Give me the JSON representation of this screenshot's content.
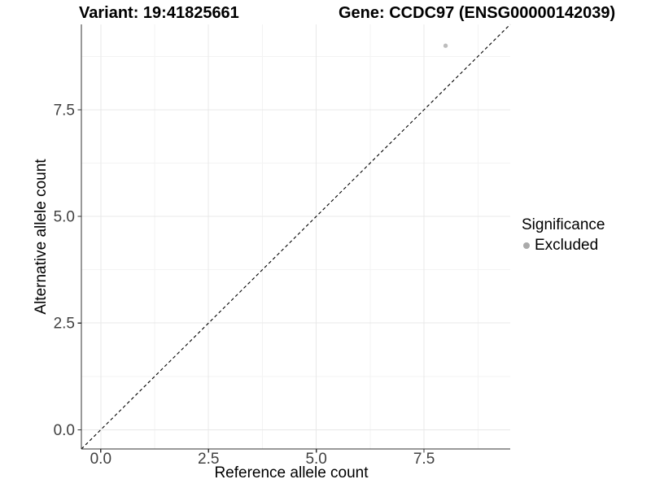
{
  "header": {
    "variant_title": "Variant: 19:41825661",
    "gene_title": "Gene: CCDC97 (ENSG00000142039)"
  },
  "legend": {
    "title": "Significance",
    "items": [
      {
        "label": "Excluded",
        "color": "#aaaaaa",
        "marker": "circle-icon"
      }
    ]
  },
  "chart_data": {
    "type": "scatter",
    "title": "Variant: 19:41825661    Gene: CCDC97 (ENSG00000142039)",
    "xlabel": "Reference allele count",
    "ylabel": "Alternative allele count",
    "xlim": [
      -0.45,
      9.5
    ],
    "ylim": [
      -0.45,
      9.5
    ],
    "x_ticks": [
      0,
      2.5,
      5,
      7.5
    ],
    "x_tick_labels": [
      "0.0",
      "2.5",
      "5.0",
      "7.5"
    ],
    "y_ticks": [
      0,
      2.5,
      5,
      7.5
    ],
    "y_tick_labels": [
      "0.0",
      "2.5",
      "5.0",
      "7.5"
    ],
    "x_minor_ticks": [
      1.25,
      3.75,
      6.25,
      8.75
    ],
    "y_minor_ticks": [
      1.25,
      3.75,
      6.25,
      8.75
    ],
    "grid": "major+minor",
    "legend_position": "right",
    "legend_title": "Significance",
    "series": [
      {
        "name": "Excluded",
        "color": "#bdbdbd",
        "points": [
          {
            "x": 8,
            "y": 9
          }
        ]
      }
    ],
    "reference_line": {
      "type": "identity y=x",
      "style": "dashed",
      "color": "#000000"
    }
  },
  "colors": {
    "background": "#ffffff",
    "grid_major": "#e8e8e8",
    "grid_minor": "#f3f3f3",
    "axis_line": "#333333",
    "tick_label": "#404040"
  }
}
